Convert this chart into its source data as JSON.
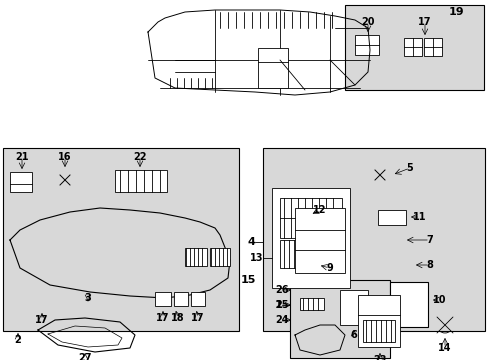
{
  "white": "#ffffff",
  "black": "#000000",
  "light_gray": "#d8d8d8",
  "fig_w": 4.89,
  "fig_h": 3.6,
  "dpi": 100
}
